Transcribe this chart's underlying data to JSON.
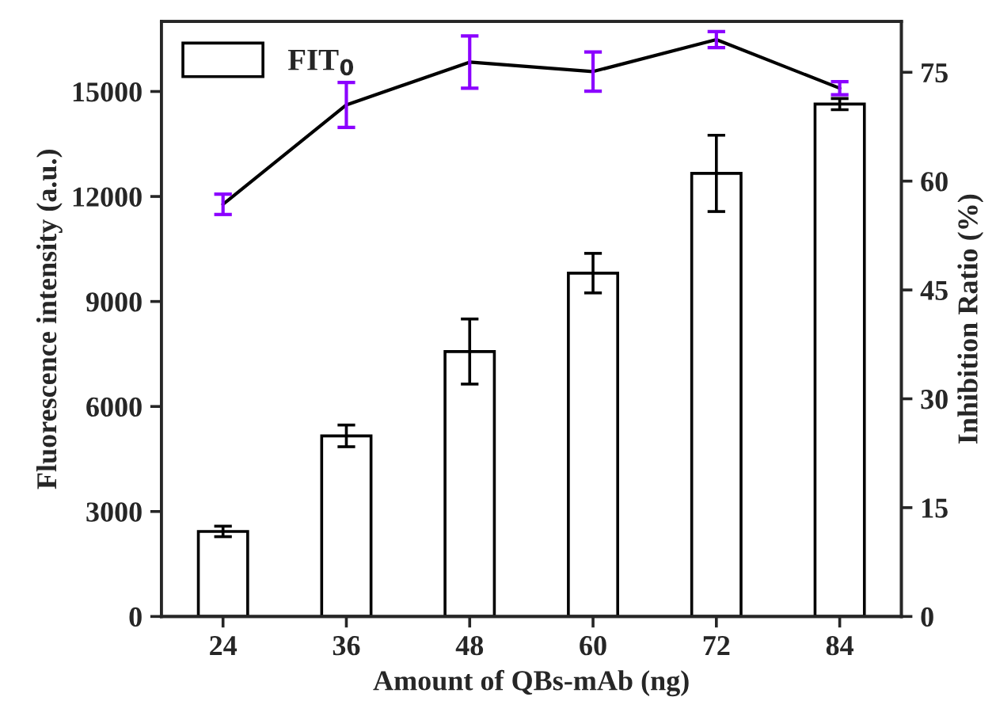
{
  "chart_data": {
    "type": "bar",
    "xlabel": "Amount of QBs-mAb (ng)",
    "ylabel": "Fluorescence intensity (a.u.)",
    "y2label": "Inhibition Ratio (%)",
    "categories": [
      "24",
      "36",
      "48",
      "60",
      "72",
      "84"
    ],
    "series": [
      {
        "name": "FIT$_{0}$",
        "color": "#ffffff",
        "values": [
          2430,
          5160,
          7570,
          9810,
          12660,
          14640
        ],
        "errors": [
          150,
          310,
          930,
          565,
          1090,
          160
        ]
      },
      {
        "type": "line",
        "axis": "y2",
        "color": "#000000",
        "values": [
          56.8,
          70.5,
          76.4,
          75.1,
          79.5,
          72.8
        ],
        "errors": [
          1.4,
          3.1,
          3.6,
          2.7,
          1.1,
          0.9
        ]
      }
    ],
    "ylim": [
      0,
      17000
    ],
    "yticks": [
      0,
      3000,
      6000,
      9000,
      12000,
      15000
    ],
    "y2lim": [
      0,
      82
    ],
    "y2ticks": [
      0,
      15,
      30,
      45,
      60,
      75
    ],
    "legend": "top left",
    "grid": false,
    "marker": "none",
    "line_style": "solid"
  }
}
